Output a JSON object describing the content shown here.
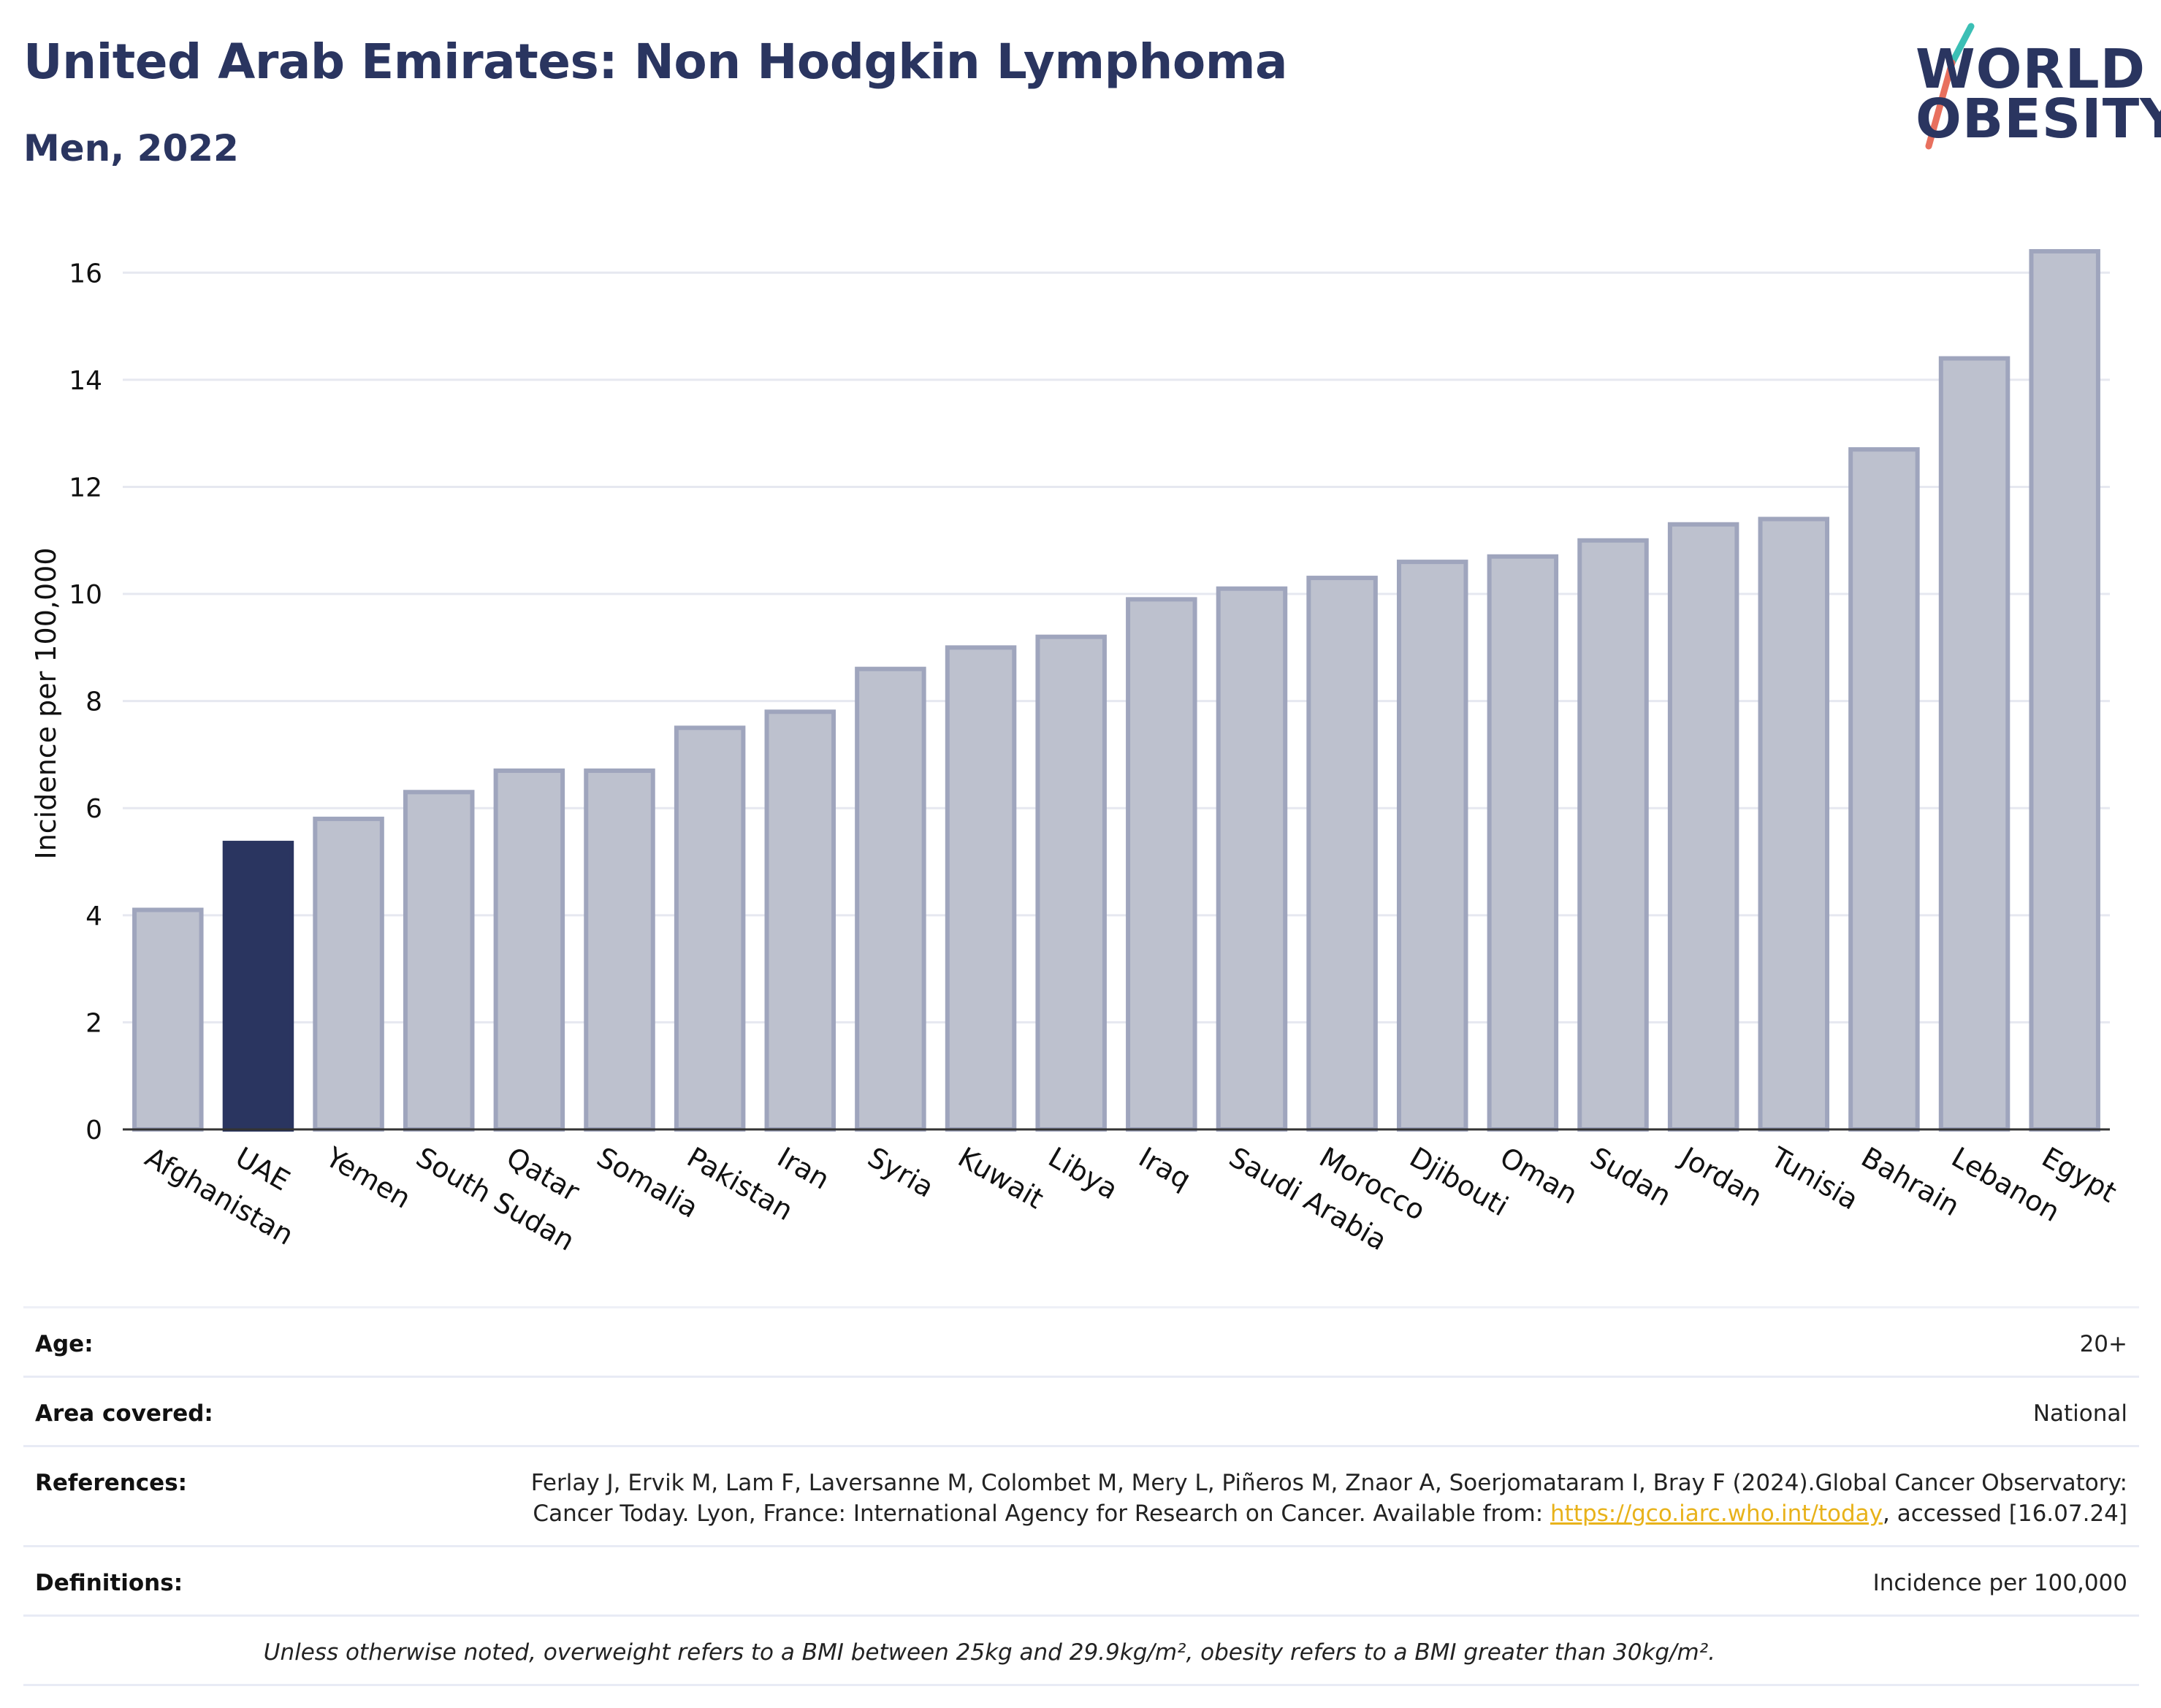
{
  "header": {
    "title": "United Arab Emirates: Non Hodgkin Lymphoma",
    "subtitle": "Men, 2022"
  },
  "logo": {
    "line1": "WORLD",
    "line2": "OBESITY",
    "colors": {
      "text": "#2a3560",
      "slash_top": "#3bbfb5",
      "slash_bottom": "#e8705e"
    }
  },
  "colors": {
    "highlight": "#2a3560",
    "bar_fill": "#bdc1ce",
    "bar_stroke": "#9fa5bd",
    "grid": "#e6e8f0",
    "accent_link": "#e8b21a"
  },
  "chart_data": {
    "type": "bar",
    "title": "United Arab Emirates: Non Hodgkin Lymphoma",
    "subtitle": "Men, 2022",
    "xlabel": "",
    "ylabel": "Incidence per 100,000",
    "ylim": [
      0,
      17
    ],
    "yticks": [
      0,
      2,
      4,
      6,
      8,
      10,
      12,
      14,
      16
    ],
    "grid": true,
    "highlight_category": "UAE",
    "categories": [
      "Afghanistan",
      "UAE",
      "Yemen",
      "South Sudan",
      "Qatar",
      "Somalia",
      "Pakistan",
      "Iran",
      "Syria",
      "Kuwait",
      "Libya",
      "Iraq",
      "Saudi Arabia",
      "Morocco",
      "Djibouti",
      "Oman",
      "Sudan",
      "Jordan",
      "Tunisia",
      "Bahrain",
      "Lebanon",
      "Egypt"
    ],
    "values": [
      4.1,
      5.35,
      5.8,
      6.3,
      6.7,
      6.7,
      7.5,
      7.8,
      8.6,
      9.0,
      9.2,
      9.9,
      10.1,
      10.3,
      10.6,
      10.7,
      11.0,
      11.3,
      11.4,
      12.7,
      14.4,
      16.4
    ]
  },
  "info": {
    "age_label": "Age:",
    "age_value": "20+",
    "area_label": "Area covered:",
    "area_value": "National",
    "references_label": "References:",
    "references_text_1": "Ferlay J, Ervik M, Lam F, Laversanne M, Colombet M, Mery L, Piñeros M, Znaor A, Soerjomataram I, Bray F (2024).Global Cancer Observatory: Cancer Today. Lyon, France: International Agency for Research on Cancer. Available from: ",
    "references_link": "https://gco.iarc.who.int/today",
    "references_text_2": ", accessed [16.07.24]",
    "definitions_label": "Definitions:",
    "definitions_value": "Incidence per 100,000",
    "footnote": "Unless otherwise noted, overweight refers to a BMI between 25kg and 29.9kg/m², obesity refers to a BMI greater than 30kg/m²."
  }
}
